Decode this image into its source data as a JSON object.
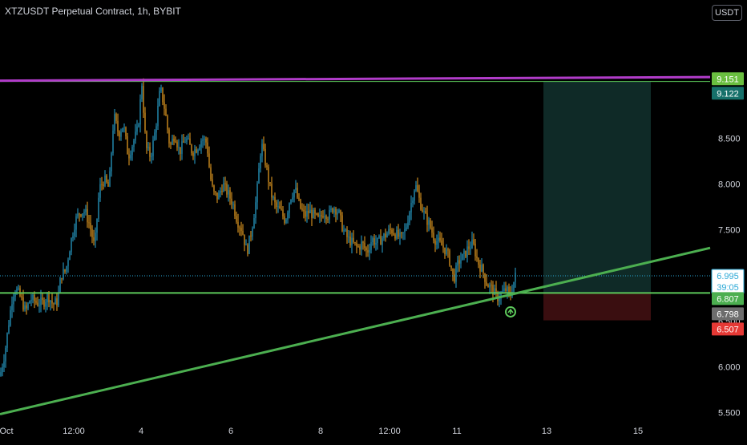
{
  "header": {
    "title": "XTZUSDT Perpetual Contract, 1h, BYBIT",
    "currency": "USDT"
  },
  "colors": {
    "background": "#000000",
    "up": "#2aa8d6",
    "down": "#f5a623",
    "support_line": "#5cc85a",
    "trend_line": "#4caf50",
    "resistance_line": "#b13cc9",
    "target_zone": "#0f2a27",
    "stop_zone": "#3a0e10",
    "text": "#d1d4dc"
  },
  "chart_data": {
    "type": "candlestick",
    "y_axis": {
      "min": 5.45,
      "max": 9.75,
      "ticks": [
        "5.500",
        "6.000",
        "6.500",
        "7.000",
        "7.500",
        "8.000",
        "8.500",
        "9.000"
      ]
    },
    "x_axis": {
      "ticks": [
        "Oct",
        "12:00",
        "4",
        "6",
        "8",
        "12:00",
        "11",
        "13",
        "15"
      ]
    },
    "candles_close_path": [
      [
        0,
        5.9
      ],
      [
        6,
        6.15
      ],
      [
        12,
        6.55
      ],
      [
        16,
        6.8
      ],
      [
        20,
        6.85
      ],
      [
        26,
        6.75
      ],
      [
        32,
        6.6
      ],
      [
        38,
        6.75
      ],
      [
        46,
        6.7
      ],
      [
        54,
        6.7
      ],
      [
        60,
        6.78
      ],
      [
        66,
        6.68
      ],
      [
        72,
        6.72
      ],
      [
        76,
        7.0
      ],
      [
        82,
        7.05
      ],
      [
        88,
        7.35
      ],
      [
        94,
        7.6
      ],
      [
        100,
        7.7
      ],
      [
        106,
        7.7
      ],
      [
        112,
        7.55
      ],
      [
        118,
        7.3
      ],
      [
        124,
        7.95
      ],
      [
        130,
        8.05
      ],
      [
        136,
        7.95
      ],
      [
        142,
        8.75
      ],
      [
        148,
        8.55
      ],
      [
        154,
        8.65
      ],
      [
        160,
        8.3
      ],
      [
        166,
        8.45
      ],
      [
        172,
        8.6
      ],
      [
        177,
        9.1
      ],
      [
        182,
        8.4
      ],
      [
        188,
        8.3
      ],
      [
        194,
        8.6
      ],
      [
        200,
        9.05
      ],
      [
        206,
        8.8
      ],
      [
        212,
        8.4
      ],
      [
        218,
        8.55
      ],
      [
        224,
        8.35
      ],
      [
        232,
        8.5
      ],
      [
        240,
        8.35
      ],
      [
        246,
        8.4
      ],
      [
        252,
        8.5
      ],
      [
        258,
        8.45
      ],
      [
        262,
        8.1
      ],
      [
        266,
        7.9
      ],
      [
        272,
        7.85
      ],
      [
        278,
        8.0
      ],
      [
        284,
        7.9
      ],
      [
        290,
        7.8
      ],
      [
        296,
        7.6
      ],
      [
        302,
        7.5
      ],
      [
        308,
        7.25
      ],
      [
        314,
        7.5
      ],
      [
        320,
        7.85
      ],
      [
        326,
        8.45
      ],
      [
        332,
        8.2
      ],
      [
        338,
        7.9
      ],
      [
        344,
        7.75
      ],
      [
        350,
        7.7
      ],
      [
        356,
        7.6
      ],
      [
        362,
        7.85
      ],
      [
        368,
        7.95
      ],
      [
        374,
        7.75
      ],
      [
        380,
        7.65
      ],
      [
        386,
        7.7
      ],
      [
        392,
        7.65
      ],
      [
        398,
        7.6
      ],
      [
        404,
        7.7
      ],
      [
        410,
        7.65
      ],
      [
        416,
        7.75
      ],
      [
        422,
        7.7
      ],
      [
        428,
        7.5
      ],
      [
        434,
        7.4
      ],
      [
        440,
        7.35
      ],
      [
        446,
        7.3
      ],
      [
        452,
        7.35
      ],
      [
        458,
        7.25
      ],
      [
        464,
        7.4
      ],
      [
        470,
        7.35
      ],
      [
        476,
        7.4
      ],
      [
        482,
        7.45
      ],
      [
        488,
        7.5
      ],
      [
        494,
        7.45
      ],
      [
        500,
        7.4
      ],
      [
        506,
        7.5
      ],
      [
        512,
        7.75
      ],
      [
        518,
        8.0
      ],
      [
        524,
        7.8
      ],
      [
        530,
        7.65
      ],
      [
        536,
        7.55
      ],
      [
        542,
        7.4
      ],
      [
        548,
        7.35
      ],
      [
        554,
        7.3
      ],
      [
        560,
        7.2
      ],
      [
        566,
        6.95
      ],
      [
        572,
        7.15
      ],
      [
        578,
        7.2
      ],
      [
        584,
        7.3
      ],
      [
        590,
        7.35
      ],
      [
        596,
        7.15
      ],
      [
        602,
        7.05
      ],
      [
        608,
        6.9
      ],
      [
        614,
        6.85
      ],
      [
        620,
        6.75
      ],
      [
        626,
        6.8
      ],
      [
        632,
        6.85
      ],
      [
        636,
        6.75
      ],
      [
        640,
        6.9
      ],
      [
        643,
        6.99
      ]
    ],
    "levels": {
      "current_price": "6.995",
      "countdown": "39:05",
      "support": "6.807",
      "trigger": "6.798",
      "stop": "6.507",
      "target": "9.122",
      "resistance": "9.151"
    },
    "trend_line": {
      "from": [
        0,
        5.48
      ],
      "to": [
        886,
        7.3
      ]
    },
    "resistance_line": {
      "from": [
        0,
        9.13
      ],
      "to": [
        886,
        9.17
      ]
    },
    "position": {
      "x_start": 678,
      "x_end": 812,
      "entry": 6.807,
      "target": 9.122,
      "stop": 6.507
    },
    "signal_marker": {
      "x": 637,
      "y": 6.6
    }
  }
}
